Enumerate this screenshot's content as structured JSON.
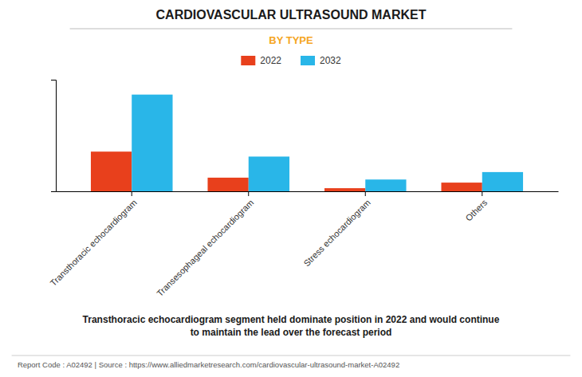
{
  "chart_data": {
    "type": "bar",
    "title": "CARDIOVASCULAR ULTRASOUND MARKET",
    "subtitle": "BY TYPE",
    "categories": [
      "Transthoracic echocardiogram",
      "Transesophageal echocardiogram",
      "Stress echocardiogram",
      "Others"
    ],
    "series": [
      {
        "name": "2022",
        "color": "#E8401C",
        "values": [
          3.2,
          1.1,
          0.25,
          0.7
        ]
      },
      {
        "name": "2032",
        "color": "#29B6E8",
        "values": [
          7.8,
          2.8,
          0.95,
          1.55
        ]
      }
    ],
    "ylim": [
      0,
      9
    ],
    "yticks": [],
    "grid": false,
    "legend": "top",
    "tick_labels": "x",
    "annotations": [
      "Transthoracic echocardiogram segment held dominate position in 2022 and would continue",
      "to maintain the lead over the forecast period",
      "Report Code : A02492  |  Source : https://www.alliedmarketresearch.com/cardiovascular-ultrasound-market-A02492"
    ]
  }
}
